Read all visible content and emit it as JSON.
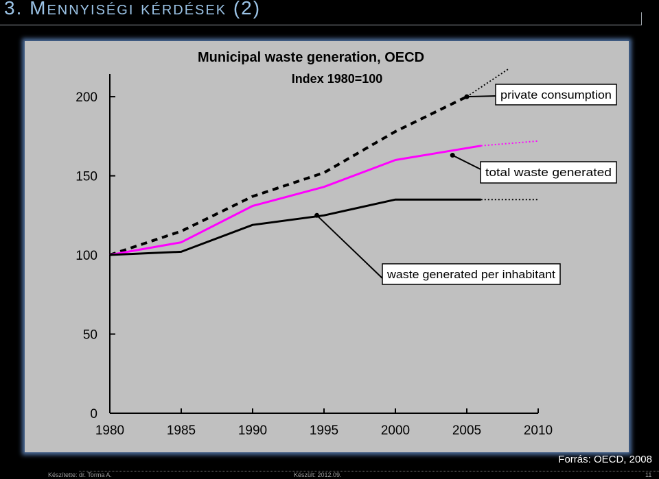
{
  "slide": {
    "title": "3. Mennyiségi kérdések (2)",
    "source": "Forrás: OECD, 2008",
    "footer_author": "Készítette: dr. Torma A.",
    "footer_date": "Készült: 2012.09.",
    "page_number": "11"
  },
  "chart_data": {
    "type": "line",
    "title": "Municipal waste generation, OECD",
    "subtitle": "Index 1980=100",
    "x": [
      1980,
      1985,
      1990,
      1995,
      2000,
      2005,
      2010
    ],
    "x_tick_labels": [
      "1980",
      "1985",
      "1990",
      "1995",
      "2000",
      "2005",
      "2010"
    ],
    "xlim": [
      1980,
      2010
    ],
    "ylim": [
      0,
      210
    ],
    "y_ticks": [
      0,
      50,
      100,
      150,
      200
    ],
    "y_tick_labels": [
      "0",
      "50",
      "100",
      "150",
      "200"
    ],
    "grid": false,
    "series": [
      {
        "name": "private consumption",
        "color": "#000000",
        "style": "dashed",
        "points": [
          [
            1980,
            100
          ],
          [
            1985,
            115
          ],
          [
            1990,
            137
          ],
          [
            1995,
            152
          ],
          [
            2000,
            178
          ],
          [
            2005,
            200
          ]
        ],
        "projection": [
          [
            2005,
            200
          ],
          [
            2008,
            218
          ]
        ],
        "callout_point": [
          2005,
          200
        ]
      },
      {
        "name": "total waste generated",
        "color": "#ff00ff",
        "style": "solid",
        "points": [
          [
            1980,
            100
          ],
          [
            1985,
            108
          ],
          [
            1990,
            131
          ],
          [
            1995,
            143
          ],
          [
            2000,
            160
          ],
          [
            2006,
            169
          ]
        ],
        "projection": [
          [
            2006,
            169
          ],
          [
            2010,
            172
          ]
        ],
        "callout_point": [
          2004,
          163
        ]
      },
      {
        "name": "waste generated per inhabitant",
        "color": "#000000",
        "style": "solid",
        "points": [
          [
            1980,
            100
          ],
          [
            1985,
            102
          ],
          [
            1990,
            119
          ],
          [
            1995,
            125
          ],
          [
            2000,
            135
          ],
          [
            2006,
            135
          ]
        ],
        "projection": [
          [
            2006,
            135
          ],
          [
            2010,
            135
          ]
        ],
        "callout_point": [
          1994.5,
          125
        ]
      }
    ]
  }
}
